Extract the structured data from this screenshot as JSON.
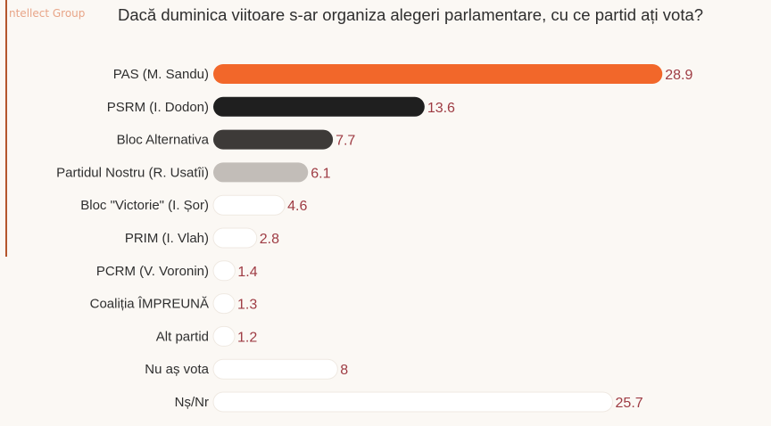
{
  "brand": "ntellect Group",
  "question": "Dacă duminica viitoare s-ar organiza alegeri parlamentare, cu ce partid ați vota?",
  "chart_data": {
    "type": "bar",
    "orientation": "horizontal",
    "categories": [
      "PAS (M. Sandu)",
      "PSRM (I. Dodon)",
      "Bloc Alternativa",
      "Partidul Nostru (R. Usatîi)",
      "Bloc \"Victorie\" (I. Șor)",
      "PRIM (I. Vlah)",
      "PCRM (V. Voronin)",
      "Coaliția ÎMPREUNĂ",
      "Alt partid",
      "Nu aș vota",
      "Nș/Nr"
    ],
    "values": [
      28.9,
      13.6,
      7.7,
      6.1,
      4.6,
      2.8,
      1.4,
      1.3,
      1.2,
      8,
      25.7
    ],
    "value_labels": [
      "28.9",
      "13.6",
      "7.7",
      "6.1",
      "4.6",
      "2.8",
      "1.4",
      "1.3",
      "1.2",
      "8",
      "25.7"
    ],
    "bar_colors": [
      "#f2672a",
      "#1f1f1f",
      "#3d3a38",
      "#c2bdb8",
      "#ffffff",
      "#ffffff",
      "#ffffff",
      "#ffffff",
      "#ffffff",
      "#ffffff",
      "#ffffff"
    ],
    "value_label_color": "#9e3b43",
    "xlim": [
      0,
      29
    ],
    "grid": false,
    "legend": "none"
  }
}
